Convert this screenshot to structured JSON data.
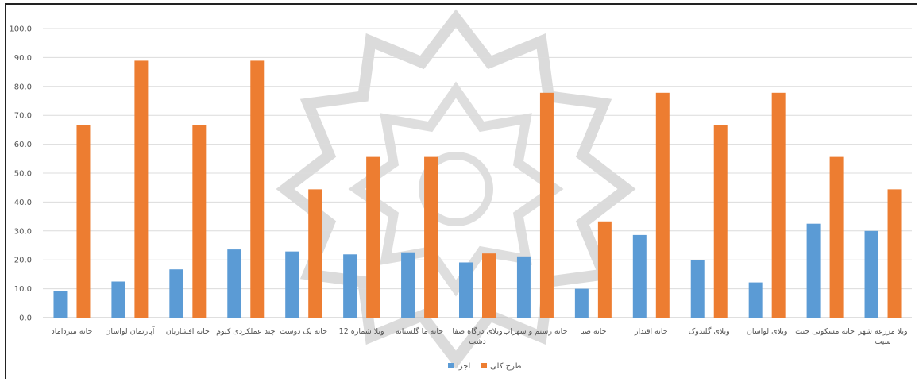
{
  "chart_data": {
    "type": "bar",
    "title": "",
    "xlabel": "",
    "ylabel": "",
    "ylim": [
      0,
      100
    ],
    "yticks": [
      "0.0",
      "10.0",
      "20.0",
      "30.0",
      "40.0",
      "50.0",
      "60.0",
      "70.0",
      "80.0",
      "90.0",
      "100.0"
    ],
    "grid": true,
    "legend_position": "bottom",
    "categories": [
      "خانه میرداماد",
      "آپارتمان لواسان",
      "خانه افشاریان",
      "چند عملکردی کیوم",
      "خانه یک دوست",
      "ویلا شماره 12",
      "خانه ما گلستانه",
      "ویلای درگاه صفا دشت",
      "خانه رستم و سهراب",
      "خانه صبا",
      "خانه اقتدار",
      "ویلای گلندوک",
      "ویلای لواسان",
      "خانه مسکونی جنت",
      "ویلا مزرعه شهر سیب"
    ],
    "series": [
      {
        "name": "اجزا",
        "color": "#5b9bd5",
        "values": [
          9.2,
          12.5,
          16.7,
          23.6,
          22.9,
          21.9,
          22.6,
          19.1,
          21.2,
          10.0,
          28.6,
          20.0,
          12.2,
          32.5,
          30.0
        ]
      },
      {
        "name": "طرح کلی",
        "color": "#ed7d31",
        "values": [
          66.7,
          88.9,
          66.7,
          88.9,
          44.4,
          55.6,
          55.6,
          22.2,
          77.8,
          33.3,
          77.8,
          66.7,
          77.8,
          55.6,
          44.4
        ]
      }
    ]
  }
}
